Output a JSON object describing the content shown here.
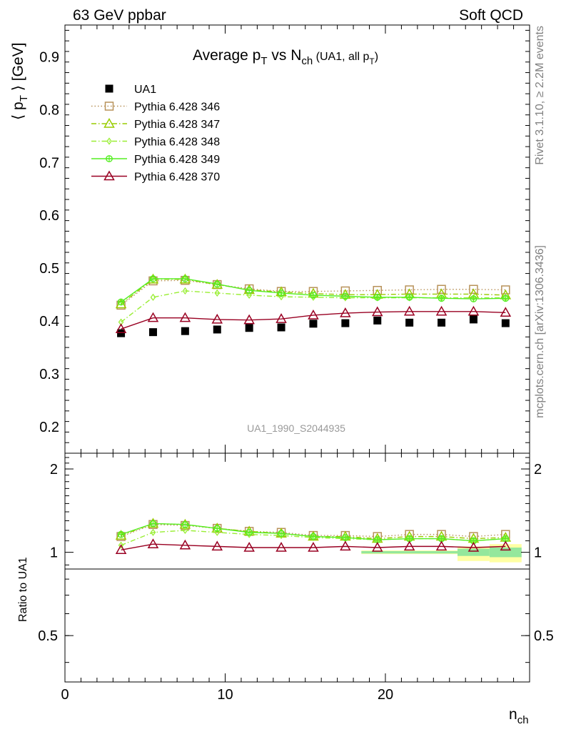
{
  "header": {
    "left": "63 GeV ppbar",
    "right": "Soft QCD"
  },
  "side_text": {
    "top": "Rivet 3.1.10, ≥ 2.2M events",
    "bottom": "mcplots.cern.ch [arXiv:1306.3436]"
  },
  "labels": {
    "ratio_ylabel": "Ratio to UA1",
    "watermark": "UA1_1990_S2044935",
    "title": {
      "a": "Average p",
      "a_sub": "T",
      "b": " vs N",
      "b_sub": "ch",
      "c": " (UA1, all p",
      "c_sub": "T",
      "d": ")"
    },
    "ylabel": {
      "a": "⟨ p",
      "a_sub": "T",
      "b": " ⟩ [GeV]"
    },
    "xlabel": {
      "main": "n",
      "sub": "ch"
    }
  },
  "chart_data": [
    {
      "type": "scatter",
      "panel": "main",
      "ylim": [
        0.15,
        0.96
      ],
      "xlim": [
        0,
        29
      ],
      "yticks": [
        0.2,
        0.3,
        0.4,
        0.5,
        0.6,
        0.7,
        0.8,
        0.9
      ],
      "ytick_labels": [
        "0.2",
        "0.3",
        "0.4",
        "0.5",
        "0.6",
        "0.7",
        "0.8",
        "0.9"
      ],
      "x": [
        3.5,
        5.5,
        7.5,
        9.5,
        11.5,
        13.5,
        15.5,
        17.5,
        19.5,
        21.5,
        23.5,
        25.5,
        27.5
      ],
      "series": [
        {
          "name": "UA1",
          "color": "#000000",
          "marker": "square-filled",
          "line": "none",
          "values": [
            0.377,
            0.379,
            0.381,
            0.384,
            0.387,
            0.388,
            0.395,
            0.396,
            0.401,
            0.397,
            0.397,
            0.403,
            0.396
          ]
        },
        {
          "name": "Pythia 6.428 346",
          "color": "#b8925a",
          "marker": "square-open",
          "line": "dotted",
          "values": [
            0.43,
            0.476,
            0.477,
            0.469,
            0.461,
            0.456,
            0.456,
            0.457,
            0.458,
            0.459,
            0.46,
            0.46,
            0.459
          ]
        },
        {
          "name": "Pythia 6.428 347",
          "color": "#99cc00",
          "marker": "triangle-open",
          "line": "dashdot",
          "values": [
            0.432,
            0.479,
            0.479,
            0.469,
            0.459,
            0.455,
            0.452,
            0.45,
            0.45,
            0.451,
            0.451,
            0.451,
            0.449
          ]
        },
        {
          "name": "Pythia 6.428 348",
          "color": "#99ee33",
          "marker": "diamond-open",
          "line": "dashdot",
          "values": [
            0.398,
            0.445,
            0.457,
            0.453,
            0.449,
            0.446,
            0.445,
            0.444,
            0.444,
            0.444,
            0.444,
            0.444,
            0.444
          ]
        },
        {
          "name": "Pythia 6.428 349",
          "color": "#55ee22",
          "marker": "circle-cross",
          "line": "solid",
          "values": [
            0.436,
            0.48,
            0.48,
            0.47,
            0.458,
            0.453,
            0.449,
            0.447,
            0.445,
            0.445,
            0.443,
            0.442,
            0.443
          ]
        },
        {
          "name": "Pythia 6.428 370",
          "color": "#990022",
          "marker": "triangle-open",
          "line": "solid",
          "values": [
            0.385,
            0.406,
            0.406,
            0.403,
            0.402,
            0.404,
            0.411,
            0.415,
            0.417,
            0.418,
            0.418,
            0.418,
            0.416
          ]
        }
      ]
    },
    {
      "type": "scatter",
      "panel": "ratio",
      "ylabel": "Ratio to UA1",
      "ylim": [
        0.34,
        2.28
      ],
      "xlim": [
        0,
        29
      ],
      "xticks": [
        0,
        10,
        20
      ],
      "xtick_labels": [
        "0",
        "10",
        "20"
      ],
      "yticks": [
        0.5,
        1,
        2
      ],
      "ytick_labels": [
        "0.5",
        "1",
        "2"
      ],
      "x": [
        3.5,
        5.5,
        7.5,
        9.5,
        11.5,
        13.5,
        15.5,
        17.5,
        19.5,
        21.5,
        23.5,
        25.5,
        27.5
      ],
      "uncertainty_bands": [
        {
          "x0": 18.5,
          "x1": 24.5,
          "inner": [
            0.99,
            1.01
          ],
          "outer": [
            0.985,
            1.015
          ]
        },
        {
          "x0": 24.5,
          "x1": 26.5,
          "inner": [
            0.97,
            1.03
          ],
          "outer": [
            0.93,
            1.05
          ]
        },
        {
          "x0": 26.5,
          "x1": 28.5,
          "inner": [
            0.96,
            1.04
          ],
          "outer": [
            0.92,
            1.07
          ]
        }
      ],
      "series": [
        {
          "name": "Pythia 6.428 346",
          "values": [
            1.14,
            1.26,
            1.25,
            1.22,
            1.19,
            1.18,
            1.15,
            1.15,
            1.14,
            1.16,
            1.16,
            1.14,
            1.16
          ]
        },
        {
          "name": "Pythia 6.428 347",
          "values": [
            1.15,
            1.27,
            1.26,
            1.22,
            1.19,
            1.17,
            1.14,
            1.14,
            1.12,
            1.14,
            1.14,
            1.12,
            1.13
          ]
        },
        {
          "name": "Pythia 6.428 348",
          "values": [
            1.06,
            1.18,
            1.2,
            1.18,
            1.16,
            1.15,
            1.13,
            1.12,
            1.11,
            1.12,
            1.12,
            1.1,
            1.12
          ]
        },
        {
          "name": "Pythia 6.428 349",
          "values": [
            1.16,
            1.27,
            1.26,
            1.22,
            1.18,
            1.17,
            1.14,
            1.13,
            1.11,
            1.12,
            1.12,
            1.1,
            1.12
          ]
        },
        {
          "name": "Pythia 6.428 370",
          "values": [
            1.02,
            1.07,
            1.06,
            1.05,
            1.04,
            1.04,
            1.04,
            1.05,
            1.04,
            1.05,
            1.05,
            1.04,
            1.05
          ]
        }
      ]
    }
  ]
}
